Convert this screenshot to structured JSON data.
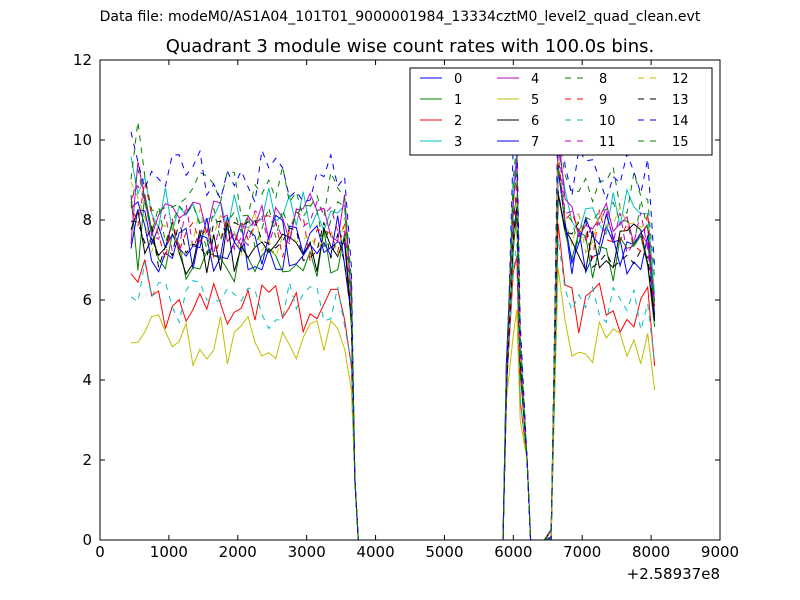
{
  "chart_data": {
    "type": "line",
    "header": "Data file: modeM0/AS1A04_101T01_9000001984_13334cztM0_level2_quad_clean.evt",
    "title": "Quadrant 3 module wise count rates with 100.0s bins.",
    "xlabel": "",
    "ylabel": "",
    "x_offset_label": "+2.58937e8",
    "xlim": [
      0,
      9000
    ],
    "ylim": [
      0,
      12
    ],
    "xticks": [
      "0",
      "1000",
      "2000",
      "3000",
      "4000",
      "5000",
      "6000",
      "7000",
      "8000",
      "9000"
    ],
    "yticks": [
      "0",
      "2",
      "4",
      "6",
      "8",
      "10",
      "12"
    ],
    "legend": "top-right",
    "series": [
      {
        "name": "0",
        "color": "#0000ff",
        "dash": "solid",
        "base": 7.3,
        "amp": 0.3
      },
      {
        "name": "1",
        "color": "#008000",
        "dash": "solid",
        "base": 7.1,
        "amp": 0.3
      },
      {
        "name": "2",
        "color": "#ff0000",
        "dash": "solid",
        "base": 5.8,
        "amp": 0.3
      },
      {
        "name": "3",
        "color": "#00bfbf",
        "dash": "solid",
        "base": 8.2,
        "amp": 0.3
      },
      {
        "name": "4",
        "color": "#bf00bf",
        "dash": "solid",
        "base": 8.0,
        "amp": 0.3
      },
      {
        "name": "5",
        "color": "#bfbf00",
        "dash": "solid",
        "base": 5.0,
        "amp": 0.3
      },
      {
        "name": "6",
        "color": "#000000",
        "dash": "solid",
        "base": 7.3,
        "amp": 0.3
      },
      {
        "name": "7",
        "color": "#0000ff",
        "dash": "solid",
        "base": 7.5,
        "amp": 0.3
      },
      {
        "name": "8",
        "color": "#008000",
        "dash": "dashed",
        "base": 8.7,
        "amp": 0.3
      },
      {
        "name": "9",
        "color": "#ff0000",
        "dash": "dashed",
        "base": 7.6,
        "amp": 0.3
      },
      {
        "name": "10",
        "color": "#00bfbf",
        "dash": "dashed",
        "base": 5.9,
        "amp": 0.3
      },
      {
        "name": "11",
        "color": "#bf00bf",
        "dash": "dashed",
        "base": 7.8,
        "amp": 0.3
      },
      {
        "name": "12",
        "color": "#bfbf00",
        "dash": "dashed",
        "base": 7.7,
        "amp": 0.3
      },
      {
        "name": "13",
        "color": "#000000",
        "dash": "dashed",
        "base": 7.4,
        "amp": 0.3
      },
      {
        "name": "14",
        "color": "#0000ff",
        "dash": "dashed",
        "base": 9.1,
        "amp": 0.3
      },
      {
        "name": "15",
        "color": "#008000",
        "dash": "dashed",
        "base": 7.9,
        "amp": 0.3
      }
    ]
  }
}
